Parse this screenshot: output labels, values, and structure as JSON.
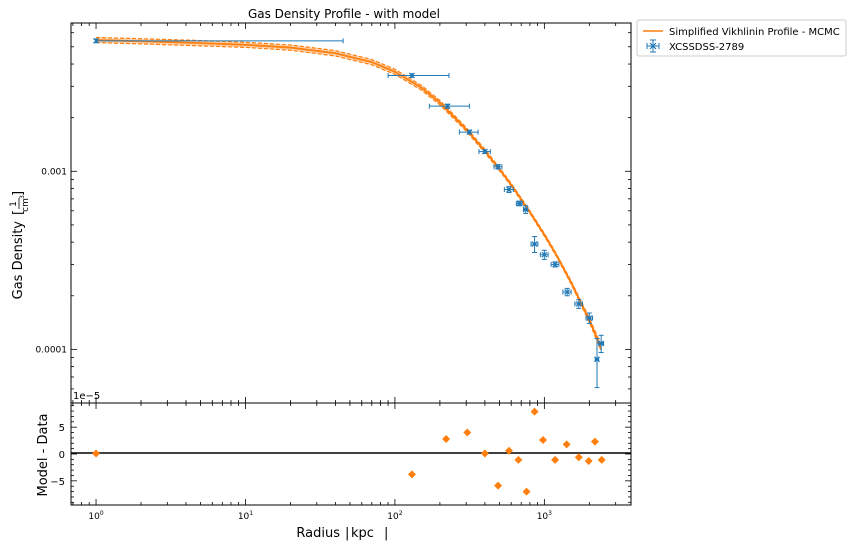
{
  "chart_data": [
    {
      "type": "scatter",
      "title": "Gas Density Profile - with model",
      "ylabel": "Gas Density",
      "ylabel_unit_num": "1",
      "ylabel_unit_den": "cm",
      "ylabel_unit_exp": "3",
      "xlabel": "",
      "x_scale": "log",
      "y_scale": "log",
      "xlim": [
        0.68,
        3800
      ],
      "ylim": [
        5e-05,
        0.0068
      ],
      "x_ticks": [
        {
          "value": 1,
          "base": "10",
          "exp": "0"
        },
        {
          "value": 10,
          "base": "10",
          "exp": "1"
        },
        {
          "value": 100,
          "base": "10",
          "exp": "2"
        },
        {
          "value": 1000,
          "base": "10",
          "exp": "3"
        }
      ],
      "y_ticks": [
        {
          "value": 0.001,
          "label": "0.001"
        },
        {
          "value": 0.0001,
          "label": "0.0001"
        }
      ],
      "offset_text": "1e−5",
      "legend": {
        "placement": "outside-right",
        "entries": [
          {
            "label": "Simplified Vikhlinin Profile - MCMC",
            "kind": "line",
            "color": "#ff7f0e"
          },
          {
            "label": "XCSSDSS-2789",
            "kind": "errorbar",
            "color": "#1f77b4"
          }
        ]
      },
      "series": [
        {
          "name": "XCSSDSS-2789",
          "kind": "errorbar",
          "color": "#1f77b4",
          "points": [
            {
              "x": 1.0,
              "y": 0.0054,
              "xerr": [
                0.0,
                44.0
              ],
              "yerr": 0.00012
            },
            {
              "x": 130,
              "y": 0.00345,
              "xerr": [
                40,
                100
              ],
              "yerr": 8e-05
            },
            {
              "x": 225,
              "y": 0.00232,
              "xerr": [
                55,
                90
              ],
              "yerr": 6e-05
            },
            {
              "x": 315,
              "y": 0.00166,
              "xerr": [
                45,
                45
              ],
              "yerr": 4e-05
            },
            {
              "x": 400,
              "y": 0.00129,
              "xerr": [
                35,
                35
              ],
              "yerr": 3e-05
            },
            {
              "x": 490,
              "y": 0.00106,
              "xerr": [
                30,
                30
              ],
              "yerr": 3e-05
            },
            {
              "x": 580,
              "y": 0.00079,
              "xerr": [
                40,
                40
              ],
              "yerr": 3e-05
            },
            {
              "x": 680,
              "y": 0.00066,
              "xerr": [
                30,
                30
              ],
              "yerr": 2e-05
            },
            {
              "x": 750,
              "y": 0.00061,
              "xerr": [
                25,
                25
              ],
              "yerr": 3e-05
            },
            {
              "x": 860,
              "y": 0.00039,
              "xerr": [
                45,
                45
              ],
              "yerr": 4e-05
            },
            {
              "x": 1000,
              "y": 0.00034,
              "xerr": [
                60,
                60
              ],
              "yerr": 2e-05
            },
            {
              "x": 1180,
              "y": 0.0003,
              "xerr": [
                70,
                70
              ],
              "yerr": 1e-05
            },
            {
              "x": 1420,
              "y": 0.00021,
              "xerr": [
                90,
                90
              ],
              "yerr": 1e-05
            },
            {
              "x": 1700,
              "y": 0.00018,
              "xerr": [
                100,
                100
              ],
              "yerr": 1e-05
            },
            {
              "x": 2000,
              "y": 0.00015,
              "xerr": [
                100,
                100
              ],
              "yerr": 1e-05
            },
            {
              "x": 2250,
              "y": 8.8e-05,
              "xerr": [
                60,
                60
              ],
              "yerr": 2.7e-05
            },
            {
              "x": 2400,
              "y": 0.000108,
              "xerr": [
                90,
                90
              ],
              "yerr": 1.2e-05
            }
          ]
        },
        {
          "name": "Simplified Vikhlinin Profile - MCMC",
          "kind": "line",
          "color": "#ff7f0e",
          "x": [
            1,
            2,
            5,
            10,
            20,
            40,
            70,
            100,
            150,
            200,
            300,
            400,
            500,
            600,
            800,
            1000,
            1200,
            1500,
            2000,
            2400
          ],
          "y": [
            0.00546,
            0.00537,
            0.00524,
            0.00513,
            0.00495,
            0.0046,
            0.0041,
            0.00362,
            0.00295,
            0.00243,
            0.00172,
            0.0013,
            0.00103,
            0.00084,
            0.00059,
            0.00044,
            0.00034,
            0.00024,
            0.000146,
            0.000102
          ],
          "band": [
            0.00018,
            0.00018,
            0.00018,
            0.00017,
            0.00017,
            0.00016,
            0.00014,
            0.00012,
            9e-05,
            7e-05,
            4e-05,
            3e-05,
            2e-05,
            1.5e-05,
            1e-05,
            8e-06,
            6e-06,
            5e-06,
            4e-06,
            4e-06
          ]
        }
      ]
    },
    {
      "type": "scatter",
      "title": "",
      "xlabel": "Radius",
      "xlabel_unit": "kpc",
      "ylabel": "Model - Data",
      "x_scale": "log",
      "xlim": [
        0.68,
        3800
      ],
      "ylim": [
        -9.5,
        9.5
      ],
      "y_ticks": [
        {
          "value": 5,
          "label": "5"
        },
        {
          "value": 0,
          "label": "0"
        },
        {
          "value": -5,
          "label": "−5"
        }
      ],
      "zero_line": true,
      "series": [
        {
          "name": "",
          "kind": "scatter",
          "marker": "diamond",
          "color": "#ff7f0e",
          "points": [
            {
              "x": 1.0,
              "y": 0.1
            },
            {
              "x": 130,
              "y": -3.8
            },
            {
              "x": 220,
              "y": 2.8
            },
            {
              "x": 305,
              "y": 4.0
            },
            {
              "x": 400,
              "y": 0.1
            },
            {
              "x": 490,
              "y": -5.9
            },
            {
              "x": 580,
              "y": 0.6
            },
            {
              "x": 670,
              "y": -1.1
            },
            {
              "x": 760,
              "y": -7.0
            },
            {
              "x": 860,
              "y": 7.9
            },
            {
              "x": 980,
              "y": 2.6
            },
            {
              "x": 1180,
              "y": -1.1
            },
            {
              "x": 1410,
              "y": 1.8
            },
            {
              "x": 1700,
              "y": -0.6
            },
            {
              "x": 1980,
              "y": -1.3
            },
            {
              "x": 2180,
              "y": 2.3
            },
            {
              "x": 2420,
              "y": -1.1
            }
          ]
        }
      ]
    }
  ]
}
